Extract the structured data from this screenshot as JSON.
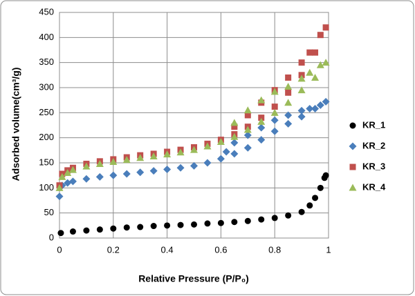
{
  "chart_data": {
    "type": "scatter",
    "x_label": "Relative Pressure (P/P₀)",
    "y_label": "Adsorbed volume(cm³/g)",
    "xlim": [
      0,
      1
    ],
    "xticks": [
      0,
      0.2,
      0.4,
      0.6,
      0.8,
      1
    ],
    "ylim": [
      0,
      450
    ],
    "yticks": [
      0,
      50,
      100,
      150,
      200,
      250,
      300,
      350,
      400,
      450
    ],
    "grid": true,
    "legend": "right",
    "series": [
      {
        "name": "KR_1",
        "color": "#000000",
        "marker": "circle",
        "x": [
          0.005,
          0.05,
          0.1,
          0.15,
          0.2,
          0.25,
          0.3,
          0.35,
          0.4,
          0.45,
          0.5,
          0.55,
          0.6,
          0.65,
          0.7,
          0.75,
          0.8,
          0.85,
          0.9,
          0.93,
          0.95,
          0.97,
          0.985,
          0.99
        ],
        "values": [
          10,
          13,
          15,
          17,
          19,
          21,
          22,
          24,
          25,
          26,
          27,
          29,
          30,
          32,
          34,
          37,
          40,
          45,
          52,
          65,
          80,
          100,
          120,
          125
        ]
      },
      {
        "name": "KR_2",
        "color": "#4a7ebb",
        "marker": "diamond",
        "x": [
          0,
          0.01,
          0.03,
          0.05,
          0.1,
          0.15,
          0.2,
          0.25,
          0.3,
          0.35,
          0.4,
          0.45,
          0.5,
          0.55,
          0.6,
          0.65,
          0.7,
          0.75,
          0.8,
          0.85,
          0.9,
          0.95,
          0.99,
          0.97,
          0.93,
          0.9,
          0.85,
          0.8,
          0.75,
          0.7,
          0.65,
          0.62
        ],
        "values": [
          83,
          105,
          110,
          113,
          118,
          122,
          125,
          128,
          131,
          134,
          137,
          140,
          144,
          150,
          158,
          168,
          180,
          196,
          213,
          228,
          242,
          258,
          272,
          265,
          258,
          254,
          245,
          235,
          220,
          205,
          190,
          172
        ]
      },
      {
        "name": "KR_3",
        "color": "#c0504d",
        "marker": "square",
        "x": [
          0,
          0.01,
          0.03,
          0.05,
          0.1,
          0.15,
          0.2,
          0.25,
          0.3,
          0.35,
          0.4,
          0.45,
          0.5,
          0.55,
          0.6,
          0.65,
          0.7,
          0.75,
          0.8,
          0.85,
          0.9,
          0.95,
          0.99,
          0.97,
          0.93,
          0.9,
          0.85,
          0.8,
          0.75,
          0.7,
          0.65
        ],
        "values": [
          105,
          128,
          135,
          140,
          148,
          153,
          157,
          161,
          165,
          168,
          172,
          176,
          181,
          188,
          196,
          207,
          222,
          240,
          262,
          290,
          325,
          370,
          420,
          405,
          370,
          350,
          320,
          295,
          270,
          245,
          222
        ]
      },
      {
        "name": "KR_4",
        "color": "#9bbb59",
        "marker": "triangle",
        "x": [
          0,
          0.01,
          0.03,
          0.05,
          0.1,
          0.15,
          0.2,
          0.25,
          0.3,
          0.35,
          0.4,
          0.45,
          0.5,
          0.55,
          0.6,
          0.65,
          0.7,
          0.75,
          0.8,
          0.85,
          0.9,
          0.95,
          0.99,
          0.97,
          0.93,
          0.9,
          0.85,
          0.8,
          0.75,
          0.7,
          0.65
        ],
        "values": [
          100,
          122,
          130,
          136,
          143,
          148,
          152,
          156,
          160,
          163,
          167,
          171,
          176,
          183,
          192,
          202,
          216,
          232,
          250,
          270,
          295,
          320,
          350,
          345,
          330,
          318,
          302,
          292,
          275,
          255,
          230
        ]
      }
    ]
  }
}
